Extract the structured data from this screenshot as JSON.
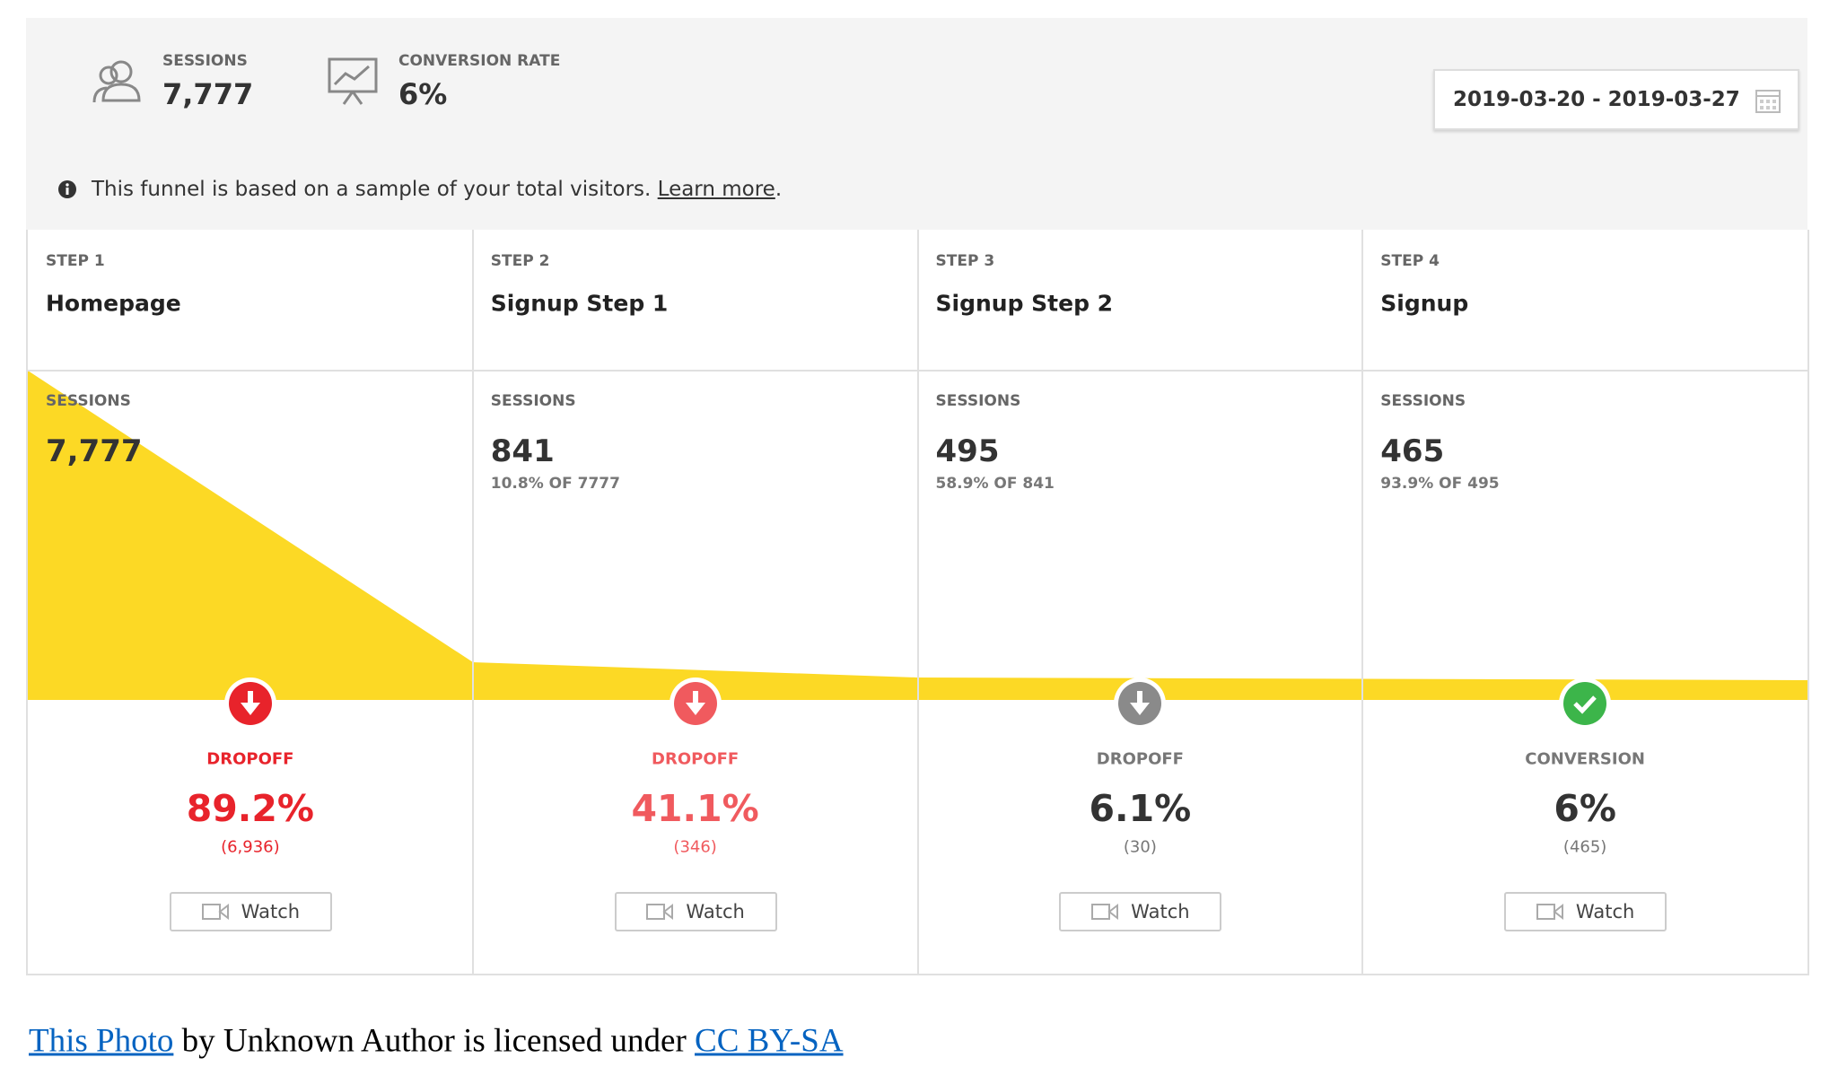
{
  "header": {
    "sessions_label": "SESSIONS",
    "sessions": "7,777",
    "conversion_label": "CONVERSION RATE",
    "conversion": "6%",
    "date_range": "2019-03-20 - 2019-03-27"
  },
  "notice": {
    "text": "This funnel is based on a sample of your total visitors. ",
    "link": "Learn more",
    "end": "."
  },
  "steps": [
    {
      "step": "STEP 1",
      "name": "Homepage",
      "sessions_label": "SESSIONS",
      "sessions": "7,777",
      "outcome_label": "DROPOFF",
      "outcome_rate": "89.2%",
      "outcome_count": "(6,936)",
      "action": "Watch"
    },
    {
      "step": "STEP 2",
      "name": "Signup Step 1",
      "sessions_label": "SESSIONS",
      "sessions": "841",
      "share": "10.8% OF 7777",
      "outcome_label": "DROPOFF",
      "outcome_rate": "41.1%",
      "outcome_count": "(346)",
      "action": "Watch"
    },
    {
      "step": "STEP 3",
      "name": "Signup Step 2",
      "sessions_label": "SESSIONS",
      "sessions": "495",
      "share": "58.9% OF 841",
      "outcome_label": "DROPOFF",
      "outcome_rate": "6.1%",
      "outcome_count": "(30)",
      "action": "Watch"
    },
    {
      "step": "STEP 4",
      "name": "Signup",
      "sessions_label": "SESSIONS",
      "sessions": "465",
      "share": "93.9% OF 495",
      "outcome_label": "CONVERSION",
      "outcome_rate": "6%",
      "outcome_count": "(465)",
      "action": "Watch"
    }
  ],
  "credit": {
    "link1": "This Photo",
    "text": " by Unknown Author is licensed under ",
    "link2": "CC BY-SA"
  }
}
